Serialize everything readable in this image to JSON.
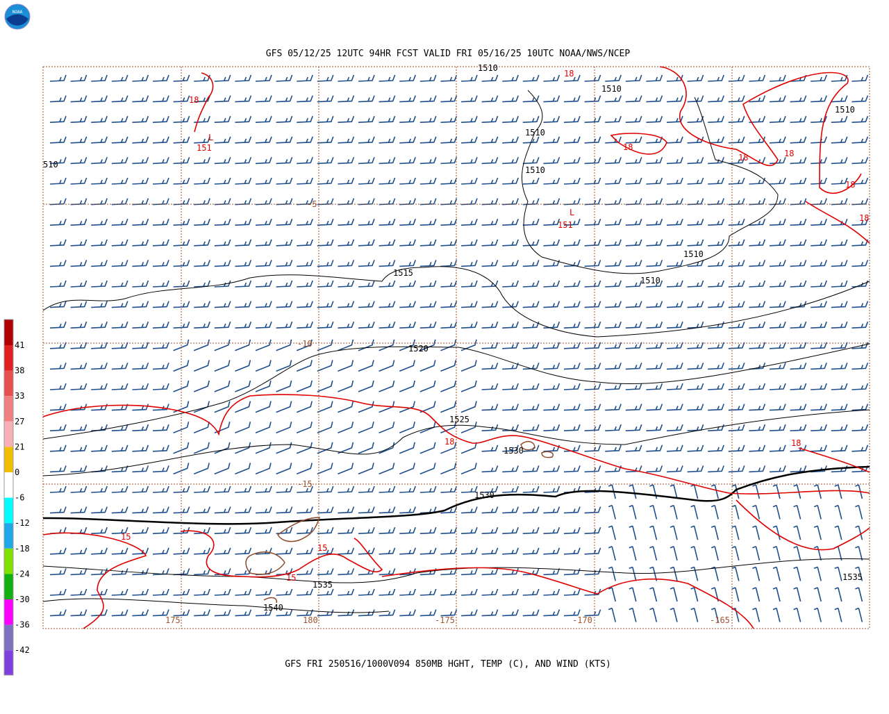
{
  "logo": {
    "text": "NOAA"
  },
  "header": {
    "title": "GFS 05/12/25 12UTC 94HR FCST VALID FRI 05/16/25 10UTC NOAA/NWS/NCEP"
  },
  "footer": {
    "caption": "GFS FRI 250516/1000V094 850MB HGHT, TEMP (C), AND WIND (KTS)"
  },
  "colorbar": {
    "labels": [
      41,
      38,
      33,
      27,
      21,
      0,
      -6,
      -12,
      -18,
      -24,
      -30,
      -36,
      -42
    ],
    "colors": [
      "#b00000",
      "#e02020",
      "#e85050",
      "#f08080",
      "#f8b0b8",
      "#f0c000",
      "#ffffff",
      "#00ffff",
      "#20a8e8",
      "#80e000",
      "#10b010",
      "#ff00ff",
      "#8070c0",
      "#8040e0",
      "#800080"
    ]
  },
  "map": {
    "height_labels": [
      "1510",
      "1510",
      "1510",
      "510",
      "1510",
      "1510",
      "1510",
      "1510",
      "1515",
      "1520",
      "1525",
      "1530",
      "1530",
      "1535",
      "1535",
      "1540"
    ],
    "temp_labels": [
      "18",
      "18",
      "18",
      "18",
      "18",
      "18",
      "18",
      "18",
      "18",
      "15",
      "15",
      "15"
    ],
    "low_labels": [
      "L",
      "151",
      "L",
      "151"
    ],
    "grid_labels": [
      "-5",
      "-10",
      "-15",
      "175",
      "180",
      "-175",
      "-170",
      "-165"
    ]
  }
}
